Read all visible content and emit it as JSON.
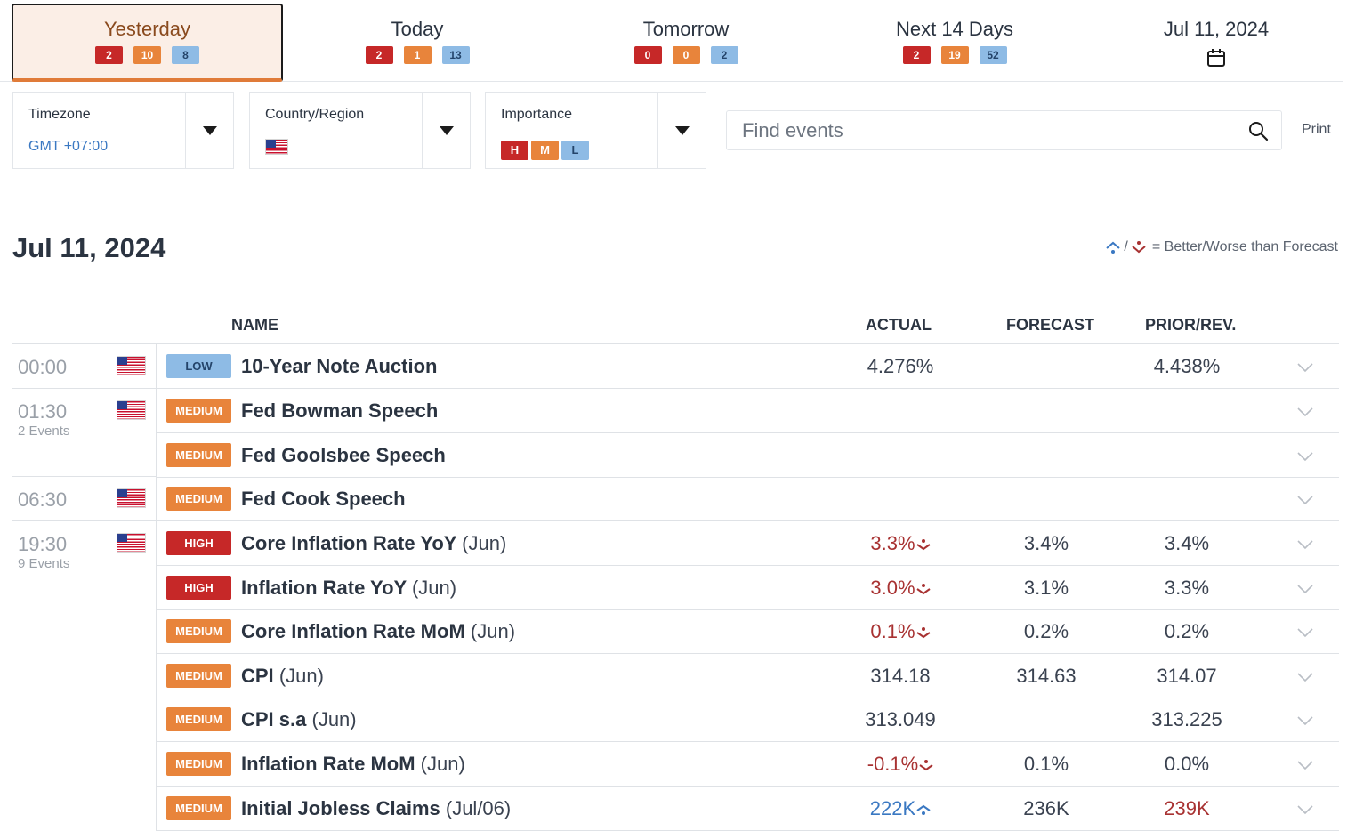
{
  "tabs": [
    {
      "label": "Yesterday",
      "high": "2",
      "medium": "10",
      "low": "8"
    },
    {
      "label": "Today",
      "high": "2",
      "medium": "1",
      "low": "13"
    },
    {
      "label": "Tomorrow",
      "high": "0",
      "medium": "0",
      "low": "2"
    },
    {
      "label": "Next 14 Days",
      "high": "2",
      "medium": "19",
      "low": "52"
    },
    {
      "label": "Jul 11, 2024"
    }
  ],
  "filters": {
    "timezone": {
      "label": "Timezone",
      "value": "GMT +07:00"
    },
    "country": {
      "label": "Country/Region",
      "flag": "us-flag-icon"
    },
    "importance": {
      "label": "Importance",
      "levels": [
        "H",
        "M",
        "L"
      ]
    }
  },
  "search": {
    "placeholder": "Find events"
  },
  "print_label": "Print",
  "section": {
    "date": "Jul 11, 2024",
    "legend": "= Better/Worse than Forecast",
    "legend_sep": "/"
  },
  "columns": {
    "name": "NAME",
    "actual": "ACTUAL",
    "forecast": "FORECAST",
    "prior": "PRIOR/REV."
  },
  "groups": [
    {
      "time": "00:00",
      "events_label": ""
    },
    {
      "time": "01:30",
      "events_label": "2 Events"
    },
    {
      "time": "06:30",
      "events_label": ""
    },
    {
      "time": "19:30",
      "events_label": "9 Events"
    }
  ],
  "rows": [
    {
      "importance": "LOW",
      "name": "10-Year Note Auction",
      "period": "",
      "actual": "4.276%",
      "forecast": "",
      "prior": "4.438%"
    },
    {
      "importance": "MEDIUM",
      "name": "Fed Bowman Speech",
      "period": "",
      "actual": "",
      "forecast": "",
      "prior": ""
    },
    {
      "importance": "MEDIUM",
      "name": "Fed Goolsbee Speech",
      "period": "",
      "actual": "",
      "forecast": "",
      "prior": ""
    },
    {
      "importance": "MEDIUM",
      "name": "Fed Cook Speech",
      "period": "",
      "actual": "",
      "forecast": "",
      "prior": ""
    },
    {
      "importance": "HIGH",
      "name": "Core Inflation Rate YoY",
      "period": "(Jun)",
      "actual": "3.3%",
      "forecast": "3.4%",
      "prior": "3.4%"
    },
    {
      "importance": "HIGH",
      "name": "Inflation Rate YoY",
      "period": "(Jun)",
      "actual": "3.0%",
      "forecast": "3.1%",
      "prior": "3.3%"
    },
    {
      "importance": "MEDIUM",
      "name": "Core Inflation Rate MoM",
      "period": "(Jun)",
      "actual": "0.1%",
      "forecast": "0.2%",
      "prior": "0.2%"
    },
    {
      "importance": "MEDIUM",
      "name": "CPI",
      "period": "(Jun)",
      "actual": "314.18",
      "forecast": "314.63",
      "prior": "314.07"
    },
    {
      "importance": "MEDIUM",
      "name": "CPI s.a",
      "period": "(Jun)",
      "actual": "313.049",
      "forecast": "",
      "prior": "313.225"
    },
    {
      "importance": "MEDIUM",
      "name": "Inflation Rate MoM",
      "period": "(Jun)",
      "actual": "-0.1%",
      "forecast": "0.1%",
      "prior": "0.0%"
    },
    {
      "importance": "MEDIUM",
      "name": "Initial Jobless Claims",
      "period": "(Jul/06)",
      "actual": "222K",
      "forecast": "236K",
      "prior": "239K"
    }
  ],
  "colors": {
    "accent": "#e07b39",
    "high": "#c62828",
    "medium": "#e8843b",
    "low": "#8ebbe5",
    "better": "#3a78c2",
    "worse": "#a83232"
  }
}
